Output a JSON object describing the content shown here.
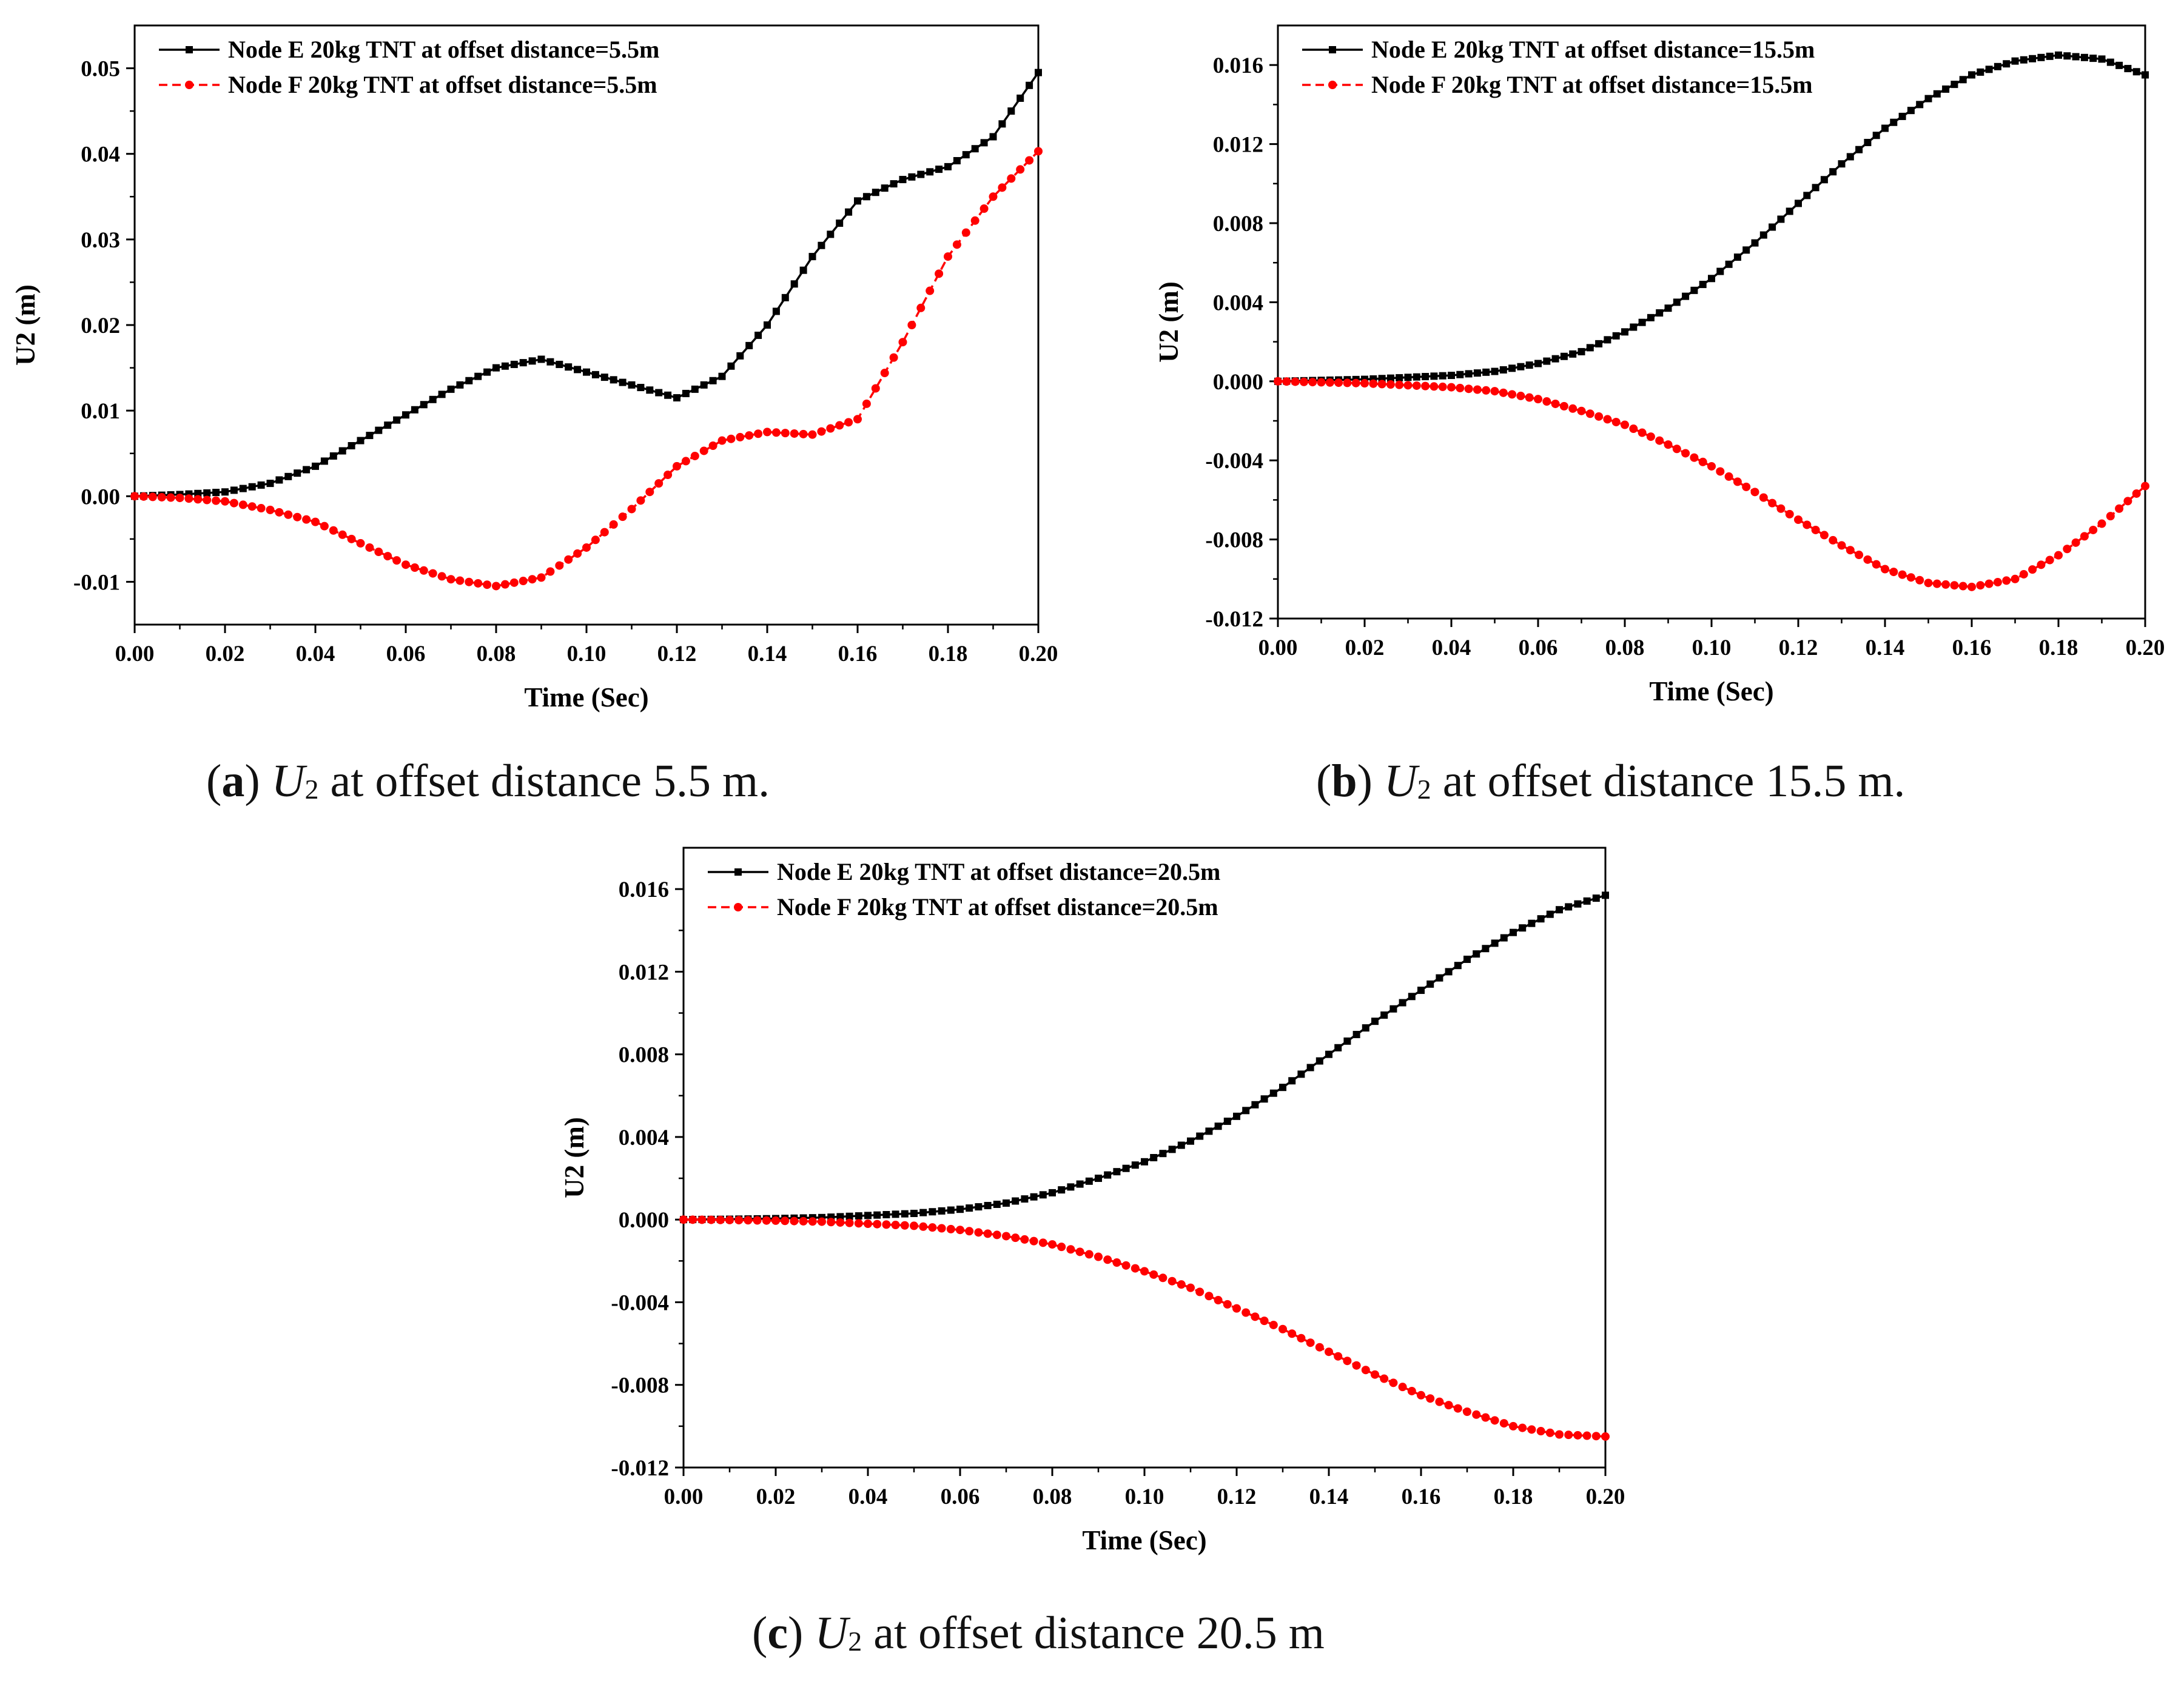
{
  "chart_data": [
    {
      "type": "line",
      "panel": "a",
      "xlabel": "Time (Sec)",
      "ylabel": "U2 (m)",
      "xlim": [
        0,
        0.2
      ],
      "ylim": [
        -0.015,
        0.055
      ],
      "xticks": [
        "0.00",
        "0.02",
        "0.04",
        "0.06",
        "0.08",
        "0.10",
        "0.12",
        "0.14",
        "0.16",
        "0.18",
        "0.20"
      ],
      "yticks": [
        "-0.01",
        "0.00",
        "0.01",
        "0.02",
        "0.03",
        "0.04",
        "0.05"
      ],
      "ytick_values": [
        -0.01,
        0.0,
        0.01,
        0.02,
        0.03,
        0.04,
        0.05
      ],
      "legend_position": "top-left",
      "caption": {
        "letter": "a",
        "var": "U",
        "sub": "2",
        "text": " at offset distance 5.5 m."
      },
      "series": [
        {
          "name": "Node E 20kg TNT at offset distance=5.5m",
          "color": "#000000",
          "marker": "square",
          "dash": "solid",
          "x": [
            0,
            0.01,
            0.02,
            0.03,
            0.04,
            0.05,
            0.06,
            0.07,
            0.08,
            0.09,
            0.1,
            0.11,
            0.12,
            0.13,
            0.14,
            0.15,
            0.16,
            0.17,
            0.18,
            0.19,
            0.2
          ],
          "y": [
            0,
            0.0002,
            0.0005,
            0.0015,
            0.0035,
            0.0065,
            0.0095,
            0.0125,
            0.015,
            0.016,
            0.0145,
            0.013,
            0.0115,
            0.014,
            0.02,
            0.028,
            0.0345,
            0.037,
            0.0385,
            0.042,
            0.0495
          ]
        },
        {
          "name": "Node F 20kg TNT at offset distance=5.5m",
          "color": "#ff0000",
          "marker": "circle",
          "dash": "dashed",
          "x": [
            0,
            0.01,
            0.02,
            0.03,
            0.04,
            0.05,
            0.06,
            0.07,
            0.08,
            0.09,
            0.1,
            0.11,
            0.12,
            0.13,
            0.14,
            0.15,
            0.16,
            0.17,
            0.18,
            0.19,
            0.2
          ],
          "y": [
            0,
            -0.0002,
            -0.0006,
            -0.0016,
            -0.003,
            -0.0055,
            -0.008,
            -0.0097,
            -0.0105,
            -0.0095,
            -0.006,
            -0.0015,
            0.0035,
            0.0065,
            0.0075,
            0.0072,
            0.009,
            0.018,
            0.028,
            0.035,
            0.0403
          ]
        }
      ]
    },
    {
      "type": "line",
      "panel": "b",
      "xlabel": "Time (Sec)",
      "ylabel": "U2 (m)",
      "xlim": [
        0,
        0.2
      ],
      "ylim": [
        -0.012,
        0.018
      ],
      "xticks": [
        "0.00",
        "0.02",
        "0.04",
        "0.06",
        "0.08",
        "0.10",
        "0.12",
        "0.14",
        "0.16",
        "0.18",
        "0.20"
      ],
      "yticks": [
        "-0.012",
        "-0.008",
        "-0.004",
        "0.000",
        "0.004",
        "0.008",
        "0.012",
        "0.016"
      ],
      "ytick_values": [
        -0.012,
        -0.008,
        -0.004,
        0.0,
        0.004,
        0.008,
        0.012,
        0.016
      ],
      "legend_position": "top-left",
      "caption": {
        "letter": "b",
        "var": "U",
        "sub": "2",
        "text": " at offset distance 15.5 m."
      },
      "series": [
        {
          "name": "Node E 20kg TNT at offset distance=15.5m",
          "color": "#000000",
          "marker": "square",
          "dash": "solid",
          "x": [
            0,
            0.01,
            0.02,
            0.03,
            0.04,
            0.05,
            0.06,
            0.07,
            0.08,
            0.09,
            0.1,
            0.11,
            0.12,
            0.13,
            0.14,
            0.15,
            0.16,
            0.17,
            0.18,
            0.19,
            0.2
          ],
          "y": [
            0,
            5e-05,
            0.0001,
            0.0002,
            0.0003,
            0.0005,
            0.0009,
            0.0015,
            0.0025,
            0.0037,
            0.0052,
            0.007,
            0.009,
            0.011,
            0.0128,
            0.0143,
            0.0155,
            0.0162,
            0.0165,
            0.0163,
            0.0155
          ]
        },
        {
          "name": "Node F 20kg TNT at offset distance=15.5m",
          "color": "#ff0000",
          "marker": "circle",
          "dash": "dashed",
          "x": [
            0,
            0.01,
            0.02,
            0.03,
            0.04,
            0.05,
            0.06,
            0.07,
            0.08,
            0.09,
            0.1,
            0.11,
            0.12,
            0.13,
            0.14,
            0.15,
            0.16,
            0.17,
            0.18,
            0.19,
            0.2
          ],
          "y": [
            0,
            -5e-05,
            -0.0001,
            -0.0002,
            -0.0003,
            -0.0005,
            -0.0009,
            -0.0015,
            -0.0022,
            -0.0032,
            -0.0043,
            -0.0056,
            -0.007,
            -0.0083,
            -0.0095,
            -0.0102,
            -0.0104,
            -0.01,
            -0.0088,
            -0.0072,
            -0.0053
          ]
        }
      ]
    },
    {
      "type": "line",
      "panel": "c",
      "xlabel": "Time (Sec)",
      "ylabel": "U2 (m)",
      "xlim": [
        0,
        0.2
      ],
      "ylim": [
        -0.012,
        0.018
      ],
      "xticks": [
        "0.00",
        "0.02",
        "0.04",
        "0.06",
        "0.08",
        "0.10",
        "0.12",
        "0.14",
        "0.16",
        "0.18",
        "0.20"
      ],
      "yticks": [
        "-0.012",
        "-0.008",
        "-0.004",
        "0.000",
        "0.004",
        "0.008",
        "0.012",
        "0.016"
      ],
      "ytick_values": [
        -0.012,
        -0.008,
        -0.004,
        0.0,
        0.004,
        0.008,
        0.012,
        0.016
      ],
      "legend_position": "top-left",
      "caption": {
        "letter": "c",
        "var": "U",
        "sub": "2",
        "text": " at offset distance 20.5 m"
      },
      "series": [
        {
          "name": "Node E 20kg TNT at offset distance=20.5m",
          "color": "#000000",
          "marker": "square",
          "dash": "solid",
          "x": [
            0,
            0.01,
            0.02,
            0.03,
            0.04,
            0.05,
            0.06,
            0.07,
            0.08,
            0.09,
            0.1,
            0.11,
            0.12,
            0.13,
            0.14,
            0.15,
            0.16,
            0.17,
            0.18,
            0.19,
            0.2
          ],
          "y": [
            0,
            2e-05,
            5e-05,
            0.0001,
            0.0002,
            0.0003,
            0.0005,
            0.0008,
            0.0013,
            0.002,
            0.0028,
            0.0038,
            0.005,
            0.0064,
            0.008,
            0.0096,
            0.0111,
            0.0126,
            0.0139,
            0.015,
            0.0157
          ]
        },
        {
          "name": "Node F 20kg TNT at offset distance=20.5m",
          "color": "#ff0000",
          "marker": "circle",
          "dash": "dashed",
          "x": [
            0,
            0.01,
            0.02,
            0.03,
            0.04,
            0.05,
            0.06,
            0.07,
            0.08,
            0.09,
            0.1,
            0.11,
            0.12,
            0.13,
            0.14,
            0.15,
            0.16,
            0.17,
            0.18,
            0.19,
            0.2
          ],
          "y": [
            0,
            -2e-05,
            -5e-05,
            -0.0001,
            -0.0002,
            -0.0003,
            -0.0005,
            -0.0008,
            -0.0012,
            -0.0018,
            -0.0025,
            -0.0033,
            -0.0043,
            -0.0053,
            -0.0064,
            -0.0075,
            -0.0085,
            -0.0093,
            -0.01,
            -0.0104,
            -0.0105
          ]
        }
      ]
    }
  ]
}
